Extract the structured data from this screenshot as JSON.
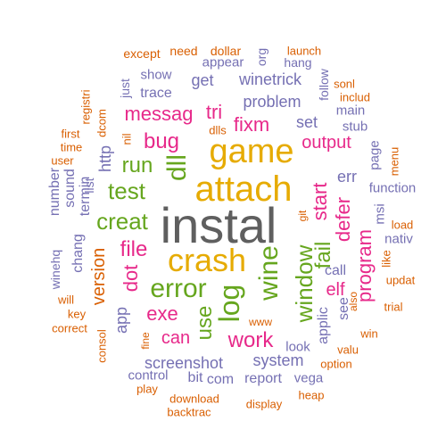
{
  "colors": {
    "gray": "#5f5f5f",
    "orange": "#d95f02",
    "purple": "#7570b3",
    "pink": "#e7298a",
    "green": "#66a61e",
    "gold": "#e6ab02"
  },
  "words": [
    {
      "text": "instal",
      "color": "gray"
    },
    {
      "text": "attach",
      "color": "gold"
    },
    {
      "text": "game",
      "color": "gold"
    },
    {
      "text": "crash",
      "color": "gold"
    },
    {
      "text": "error",
      "color": "green"
    },
    {
      "text": "log",
      "color": "green"
    },
    {
      "text": "wine",
      "color": "green"
    },
    {
      "text": "dll",
      "color": "green"
    },
    {
      "text": "window",
      "color": "green"
    },
    {
      "text": "test",
      "color": "green"
    },
    {
      "text": "creat",
      "color": "green"
    },
    {
      "text": "run",
      "color": "green"
    },
    {
      "text": "fail",
      "color": "green"
    },
    {
      "text": "use",
      "color": "green"
    },
    {
      "text": "work",
      "color": "pink"
    },
    {
      "text": "start",
      "color": "pink"
    },
    {
      "text": "bug",
      "color": "pink"
    },
    {
      "text": "messag",
      "color": "pink"
    },
    {
      "text": "tri",
      "color": "pink"
    },
    {
      "text": "fixm",
      "color": "pink"
    },
    {
      "text": "file",
      "color": "pink"
    },
    {
      "text": "exe",
      "color": "pink"
    },
    {
      "text": "output",
      "color": "pink"
    },
    {
      "text": "program",
      "color": "pink"
    },
    {
      "text": "defer",
      "color": "pink"
    },
    {
      "text": "dot",
      "color": "pink"
    },
    {
      "text": "can",
      "color": "pink"
    },
    {
      "text": "elf",
      "color": "pink"
    },
    {
      "text": "version",
      "color": "orange"
    },
    {
      "text": "problem",
      "color": "purple"
    },
    {
      "text": "winetrick",
      "color": "purple"
    },
    {
      "text": "get",
      "color": "purple"
    },
    {
      "text": "screenshot",
      "color": "purple"
    },
    {
      "text": "system",
      "color": "purple"
    },
    {
      "text": "report",
      "color": "purple"
    },
    {
      "text": "com",
      "color": "purple"
    },
    {
      "text": "bit",
      "color": "purple"
    },
    {
      "text": "http",
      "color": "purple"
    },
    {
      "text": "trace",
      "color": "purple"
    },
    {
      "text": "set",
      "color": "purple"
    },
    {
      "text": "err",
      "color": "purple"
    },
    {
      "text": "call",
      "color": "purple"
    },
    {
      "text": "applic",
      "color": "purple"
    },
    {
      "text": "see",
      "color": "purple"
    },
    {
      "text": "app",
      "color": "purple"
    },
    {
      "text": "sound",
      "color": "purple"
    },
    {
      "text": "termin",
      "color": "purple"
    },
    {
      "text": "chang",
      "color": "purple"
    },
    {
      "text": "number",
      "color": "purple"
    },
    {
      "text": "appear",
      "color": "purple"
    },
    {
      "text": "show",
      "color": "purple"
    },
    {
      "text": "function",
      "color": "purple"
    },
    {
      "text": "main",
      "color": "purple"
    },
    {
      "text": "stub",
      "color": "purple"
    },
    {
      "text": "page",
      "color": "purple"
    },
    {
      "text": "msi",
      "color": "purple"
    },
    {
      "text": "nativ",
      "color": "purple"
    },
    {
      "text": "look",
      "color": "purple"
    },
    {
      "text": "control",
      "color": "purple"
    },
    {
      "text": "vega",
      "color": "purple"
    },
    {
      "text": "hang",
      "color": "purple"
    },
    {
      "text": "follow",
      "color": "purple"
    },
    {
      "text": "just",
      "color": "purple"
    },
    {
      "text": "list",
      "color": "purple"
    },
    {
      "text": "winehq",
      "color": "purple"
    },
    {
      "text": "org",
      "color": "purple"
    },
    {
      "text": "except",
      "color": "orange"
    },
    {
      "text": "need",
      "color": "orange"
    },
    {
      "text": "dollar",
      "color": "orange"
    },
    {
      "text": "launch",
      "color": "orange"
    },
    {
      "text": "sonl",
      "color": "orange"
    },
    {
      "text": "includ",
      "color": "orange"
    },
    {
      "text": "registri",
      "color": "orange"
    },
    {
      "text": "dcom",
      "color": "orange"
    },
    {
      "text": "dlls",
      "color": "orange"
    },
    {
      "text": "nil",
      "color": "orange"
    },
    {
      "text": "first",
      "color": "orange"
    },
    {
      "text": "time",
      "color": "orange"
    },
    {
      "text": "user",
      "color": "orange"
    },
    {
      "text": "menu",
      "color": "orange"
    },
    {
      "text": "load",
      "color": "orange"
    },
    {
      "text": "like",
      "color": "orange"
    },
    {
      "text": "updat",
      "color": "orange"
    },
    {
      "text": "trial",
      "color": "orange"
    },
    {
      "text": "also",
      "color": "orange"
    },
    {
      "text": "win",
      "color": "orange"
    },
    {
      "text": "valu",
      "color": "orange"
    },
    {
      "text": "option",
      "color": "orange"
    },
    {
      "text": "heap",
      "color": "orange"
    },
    {
      "text": "display",
      "color": "orange"
    },
    {
      "text": "download",
      "color": "orange"
    },
    {
      "text": "backtrac",
      "color": "orange"
    },
    {
      "text": "play",
      "color": "orange"
    },
    {
      "text": "fine",
      "color": "orange"
    },
    {
      "text": "www",
      "color": "orange"
    },
    {
      "text": "will",
      "color": "orange"
    },
    {
      "text": "key",
      "color": "orange"
    },
    {
      "text": "correct",
      "color": "orange"
    },
    {
      "text": "consol",
      "color": "orange"
    },
    {
      "text": "git",
      "color": "orange"
    }
  ]
}
